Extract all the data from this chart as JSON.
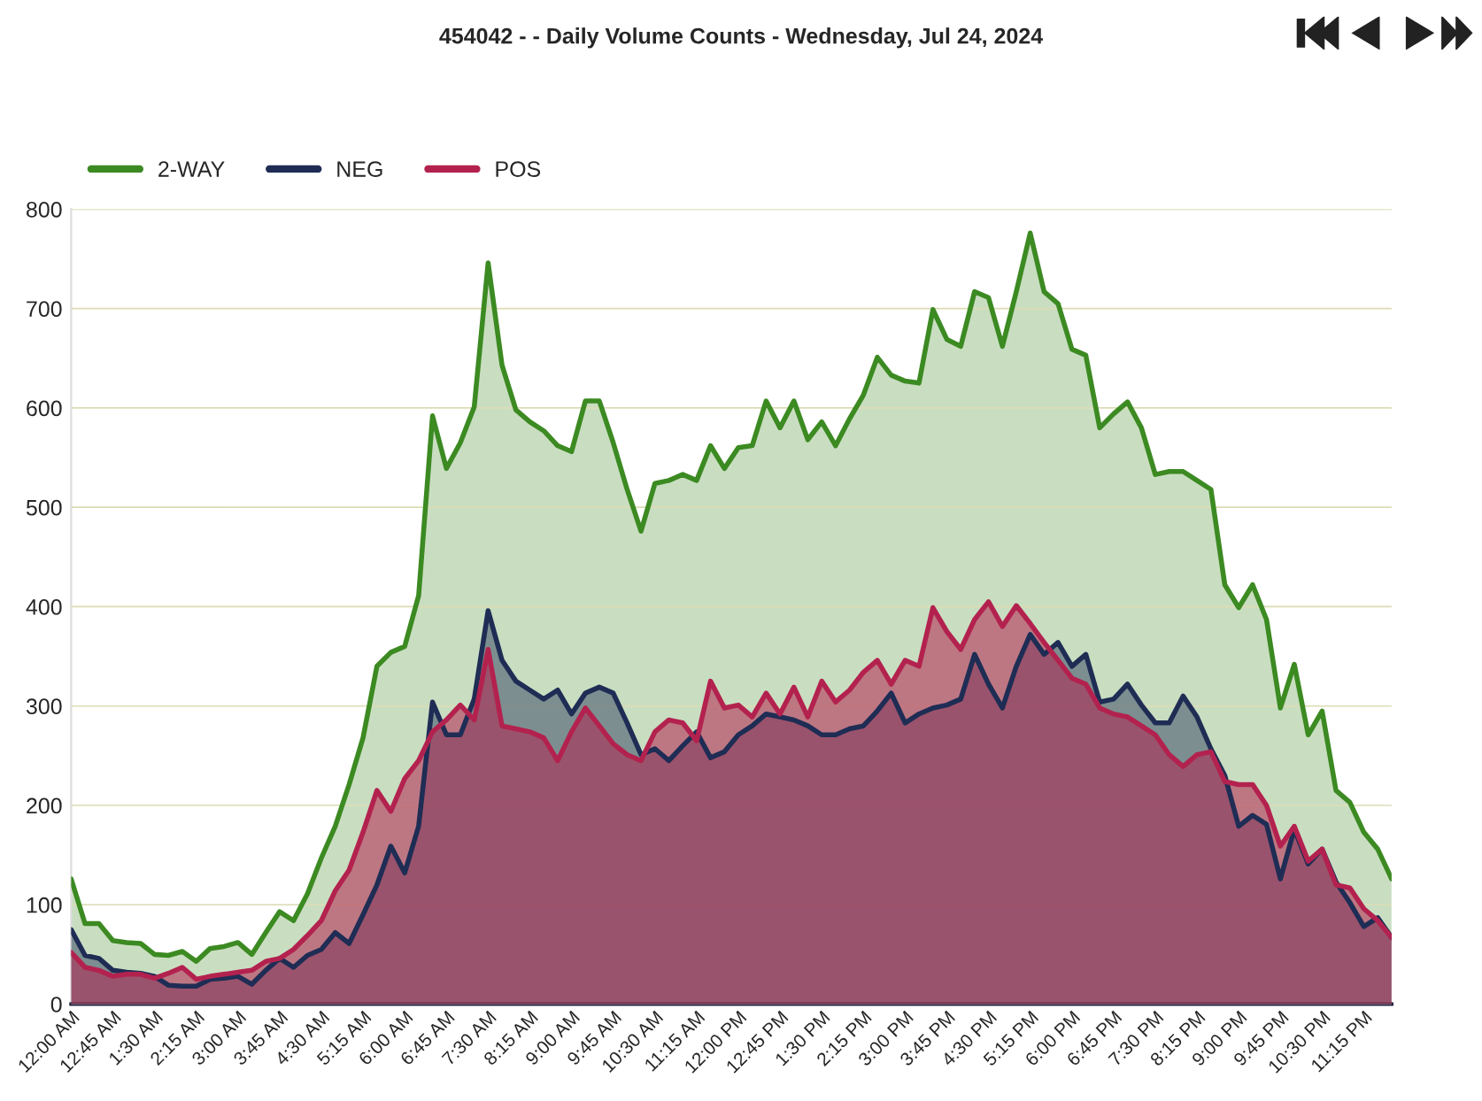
{
  "chart_data": {
    "type": "area",
    "title": "454042 - - Daily Volume Counts - Wednesday, Jul 24, 2024",
    "categories": [
      "12:00 AM",
      null,
      null,
      "12:45 AM",
      null,
      null,
      "1:30 AM",
      null,
      null,
      "2:15 AM",
      null,
      null,
      "3:00 AM",
      null,
      null,
      "3:45 AM",
      null,
      null,
      "4:30 AM",
      null,
      null,
      "5:15 AM",
      null,
      null,
      "6:00 AM",
      null,
      null,
      "6:45 AM",
      null,
      null,
      "7:30 AM",
      null,
      null,
      "8:15 AM",
      null,
      null,
      "9:00 AM",
      null,
      null,
      "9:45 AM",
      null,
      null,
      "10:30 AM",
      null,
      null,
      "11:15 AM",
      null,
      null,
      "12:00 PM",
      null,
      null,
      "12:45 PM",
      null,
      null,
      "1:30 PM",
      null,
      null,
      "2:15 PM",
      null,
      null,
      "3:00 PM",
      null,
      null,
      "3:45 PM",
      null,
      null,
      "4:30 PM",
      null,
      null,
      "5:15 PM",
      null,
      null,
      "6:00 PM",
      null,
      null,
      "6:45 PM",
      null,
      null,
      "7:30 PM",
      null,
      null,
      "8:15 PM",
      null,
      null,
      "9:00 PM",
      null,
      null,
      "9:45 PM",
      null,
      null,
      "10:30 PM",
      null,
      null,
      "11:15 PM",
      null,
      null
    ],
    "series": [
      {
        "name": "2-WAY",
        "color": "#3c8a22",
        "values": [
          126,
          81,
          81,
          64,
          62,
          61,
          50,
          49,
          53,
          43,
          56,
          58,
          62,
          50,
          72,
          93,
          84,
          111,
          147,
          179,
          221,
          268,
          340,
          354,
          360,
          411,
          592,
          539,
          565,
          601,
          746,
          643,
          598,
          586,
          577,
          562,
          556,
          607,
          607,
          565,
          518,
          476,
          524,
          527,
          533,
          527,
          562,
          539,
          560,
          562,
          607,
          580,
          607,
          568,
          586,
          562,
          589,
          613,
          651,
          633,
          627,
          625,
          699,
          669,
          662,
          717,
          711,
          662,
          717,
          776,
          717,
          705,
          659,
          653,
          580,
          594,
          606,
          580,
          533,
          536,
          536,
          527,
          518,
          422,
          399,
          422,
          387,
          298,
          342,
          271,
          295,
          215,
          203,
          173,
          156,
          126
        ]
      },
      {
        "name": "NEG",
        "color": "#1f2d55",
        "values": [
          75,
          49,
          46,
          34,
          32,
          31,
          28,
          19,
          18,
          18,
          25,
          26,
          28,
          20,
          34,
          46,
          37,
          49,
          55,
          72,
          61,
          90,
          120,
          159,
          132,
          179,
          304,
          271,
          271,
          307,
          396,
          346,
          325,
          316,
          307,
          316,
          292,
          313,
          319,
          313,
          283,
          251,
          257,
          245,
          260,
          274,
          248,
          254,
          271,
          280,
          292,
          289,
          286,
          280,
          271,
          271,
          277,
          280,
          295,
          313,
          283,
          292,
          298,
          301,
          307,
          352,
          322,
          298,
          340,
          372,
          352,
          364,
          340,
          352,
          304,
          307,
          322,
          301,
          283,
          283,
          310,
          289,
          257,
          230,
          179,
          190,
          181,
          126,
          176,
          141,
          156,
          123,
          102,
          78,
          87,
          67
        ]
      },
      {
        "name": "POS",
        "color": "#b3224f",
        "values": [
          52,
          37,
          34,
          28,
          30,
          30,
          26,
          31,
          37,
          25,
          28,
          30,
          32,
          34,
          43,
          46,
          55,
          69,
          84,
          114,
          135,
          173,
          215,
          194,
          227,
          245,
          274,
          286,
          301,
          286,
          357,
          280,
          277,
          274,
          268,
          245,
          274,
          298,
          280,
          262,
          251,
          245,
          274,
          286,
          283,
          265,
          325,
          298,
          301,
          289,
          313,
          292,
          319,
          289,
          325,
          304,
          316,
          334,
          346,
          322,
          346,
          340,
          399,
          375,
          357,
          387,
          405,
          380,
          401,
          383,
          364,
          346,
          328,
          322,
          298,
          292,
          289,
          280,
          271,
          251,
          239,
          251,
          254,
          224,
          221,
          221,
          200,
          159,
          179,
          144,
          156,
          120,
          117,
          96,
          84,
          67
        ]
      }
    ],
    "ylim": [
      0,
      800
    ],
    "yticks": [
      0,
      100,
      200,
      300,
      400,
      500,
      600,
      700,
      800
    ],
    "grid": "y",
    "legend": "top left",
    "marker": "none",
    "line_style": "solid"
  }
}
